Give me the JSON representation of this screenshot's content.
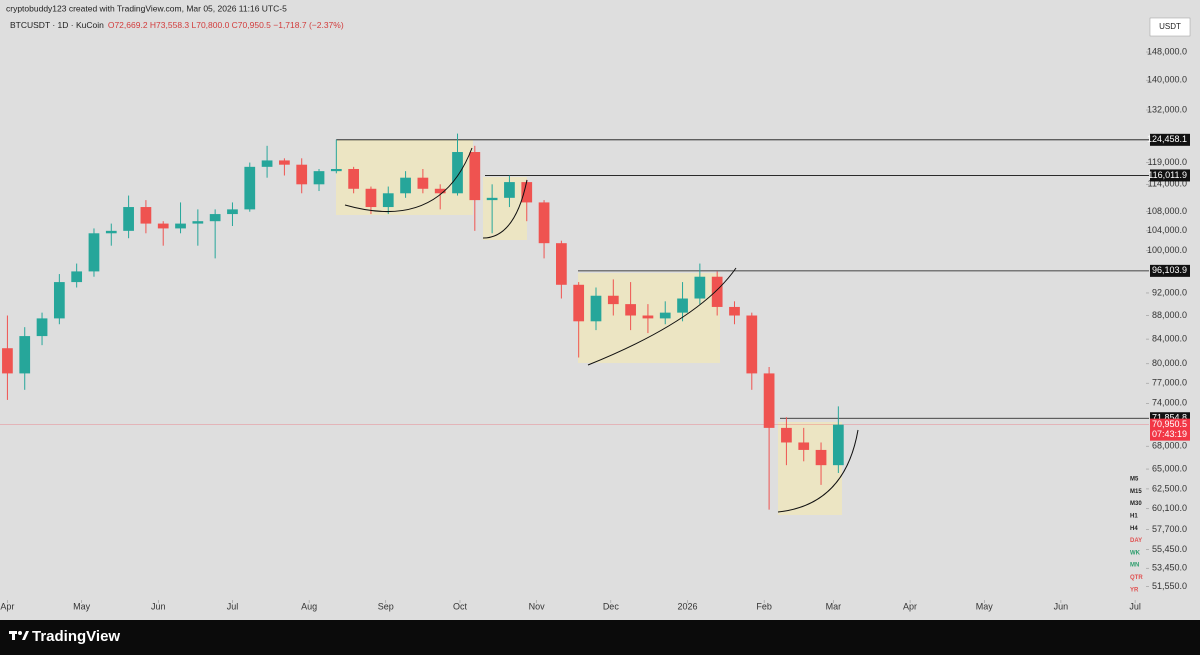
{
  "header": {
    "credit": "cryptobuddy123 created with TradingView.com, Mar 05, 2026 11:16 UTC-5",
    "symbol": "BTCUSDT · 1D · KuCoin",
    "ohlc": "O72,669.2 H73,558.3 L70,800.0 C70,950.5 −1,718.7 (−2.37%)",
    "currency": "USDT"
  },
  "chart_data": {
    "type": "candlestick",
    "log_scale": true,
    "up_color": "#26a69a",
    "down_color": "#ef5350",
    "x": [
      0,
      7,
      14,
      21,
      28,
      35,
      42,
      49,
      56,
      63,
      70,
      77,
      84,
      91,
      98,
      105,
      112,
      119,
      126,
      133,
      140,
      147,
      154,
      161,
      168,
      175,
      182,
      189,
      196,
      203,
      210,
      217,
      224,
      231,
      238,
      245,
      252,
      259,
      266,
      273,
      280,
      287,
      294,
      301,
      308,
      315,
      322,
      329,
      336
    ],
    "open": [
      82500,
      78500,
      84500,
      87500,
      94000,
      96000,
      103500,
      104000,
      109000,
      105500,
      104500,
      105500,
      106000,
      107500,
      108500,
      118000,
      119500,
      118500,
      114000,
      117000,
      117500,
      113000,
      109000,
      112000,
      115500,
      113000,
      112000,
      121500,
      110500,
      111000,
      114500,
      110000,
      101500,
      93500,
      87000,
      91500,
      90000,
      88000,
      87500,
      88500,
      91000,
      95000,
      89500,
      88000,
      78500,
      70500,
      68500,
      67500,
      65500
    ],
    "high": [
      88000,
      86000,
      88500,
      95500,
      97500,
      104500,
      105500,
      111500,
      110500,
      106000,
      110000,
      108500,
      108500,
      110000,
      119000,
      123000,
      120000,
      120000,
      117500,
      124500,
      118000,
      113500,
      113500,
      117000,
      117500,
      114000,
      126000,
      123000,
      114000,
      116000,
      115000,
      110500,
      102000,
      94000,
      93000,
      94500,
      94000,
      90000,
      90500,
      94000,
      97500,
      96000,
      90500,
      88500,
      79500,
      72000,
      70500,
      68500,
      73558.3
    ],
    "low": [
      74500,
      76000,
      83000,
      86500,
      93000,
      95000,
      101000,
      102500,
      103500,
      101000,
      103500,
      101000,
      98500,
      105000,
      108000,
      115500,
      116000,
      112000,
      112500,
      116500,
      112000,
      107500,
      107500,
      111000,
      112000,
      108500,
      111500,
      104000,
      103500,
      109000,
      106000,
      98500,
      91000,
      81000,
      85500,
      88000,
      85500,
      85000,
      86500,
      87000,
      90000,
      88000,
      86500,
      76000,
      60000,
      65500,
      66000,
      63000,
      64500
    ],
    "close": [
      78500,
      84500,
      87500,
      94000,
      96000,
      103500,
      104000,
      109000,
      105500,
      104500,
      105500,
      106000,
      107500,
      108500,
      118000,
      119500,
      118500,
      114000,
      117000,
      117500,
      113000,
      109000,
      112000,
      115500,
      113000,
      112000,
      121500,
      110500,
      111000,
      114500,
      110000,
      101500,
      93500,
      87000,
      91500,
      90000,
      88000,
      87500,
      88500,
      91000,
      95000,
      89500,
      88000,
      78500,
      70500,
      68500,
      67500,
      65500,
      70950.5
    ],
    "xlim": [
      -3,
      460
    ],
    "xticks": [
      {
        "value": 0,
        "label": "Apr"
      },
      {
        "value": 30,
        "label": "May"
      },
      {
        "value": 61,
        "label": "Jun"
      },
      {
        "value": 91,
        "label": "Jul"
      },
      {
        "value": 122,
        "label": "Aug"
      },
      {
        "value": 153,
        "label": "Sep"
      },
      {
        "value": 183,
        "label": "Oct"
      },
      {
        "value": 214,
        "label": "Nov"
      },
      {
        "value": 244,
        "label": "Dec"
      },
      {
        "value": 275,
        "label": "2026"
      },
      {
        "value": 306,
        "label": "Feb"
      },
      {
        "value": 334,
        "label": "Mar"
      },
      {
        "value": 365,
        "label": "Apr"
      },
      {
        "value": 395,
        "label": "May"
      },
      {
        "value": 426,
        "label": "Jun"
      },
      {
        "value": 456,
        "label": "Jul"
      }
    ],
    "ylim": [
      50200,
      164000
    ],
    "yticks": [
      {
        "value": 148000,
        "label": "148,000.0"
      },
      {
        "value": 140000,
        "label": "140,000.0"
      },
      {
        "value": 132000,
        "label": "132,000.0"
      },
      {
        "value": 119000,
        "label": "119,000.0"
      },
      {
        "value": 114000,
        "label": "114,000.0"
      },
      {
        "value": 108000,
        "label": "108,000.0"
      },
      {
        "value": 104000,
        "label": "104,000.0"
      },
      {
        "value": 100000,
        "label": "100,000.0"
      },
      {
        "value": 92000,
        "label": "92,000.0"
      },
      {
        "value": 88000,
        "label": "88,000.0"
      },
      {
        "value": 84000,
        "label": "84,000.0"
      },
      {
        "value": 80000,
        "label": "80,000.0"
      },
      {
        "value": 77000,
        "label": "77,000.0"
      },
      {
        "value": 74000,
        "label": "74,000.0"
      },
      {
        "value": 68000,
        "label": "68,000.0"
      },
      {
        "value": 65000,
        "label": "65,000.0"
      },
      {
        "value": 62500,
        "label": "62,500.0"
      },
      {
        "value": 60100,
        "label": "60,100.0"
      },
      {
        "value": 57700,
        "label": "57,700.0"
      },
      {
        "value": 55450,
        "label": "55,450.0"
      },
      {
        "value": 53450,
        "label": "53,450.0"
      },
      {
        "value": 51550,
        "label": "51,550.0"
      }
    ],
    "levels": [
      {
        "value": 124458.1,
        "label": "124,458.1"
      },
      {
        "value": 116011.9,
        "label": "116,011.9"
      },
      {
        "value": 96103.9,
        "label": "96,103.9"
      },
      {
        "value": 71854.8,
        "label": "71,854.8"
      }
    ],
    "last_price": {
      "value": 70950.5,
      "label": "70,950.5",
      "countdown": "07:43:19",
      "color": "#f23645"
    },
    "timeframes": [
      {
        "label": "M5",
        "color": "#222222"
      },
      {
        "label": "M15",
        "color": "#222222"
      },
      {
        "label": "M30",
        "color": "#222222"
      },
      {
        "label": "H1",
        "color": "#222222"
      },
      {
        "label": "H4",
        "color": "#222222"
      },
      {
        "label": "DAY",
        "color": "#e05050"
      },
      {
        "label": "WK",
        "color": "#2e9e6e"
      },
      {
        "label": "MN",
        "color": "#2e9e6e"
      },
      {
        "label": "QTR",
        "color": "#e05050"
      },
      {
        "label": "YR",
        "color": "#e05050"
      }
    ]
  },
  "footer": {
    "brand": "TradingView"
  }
}
